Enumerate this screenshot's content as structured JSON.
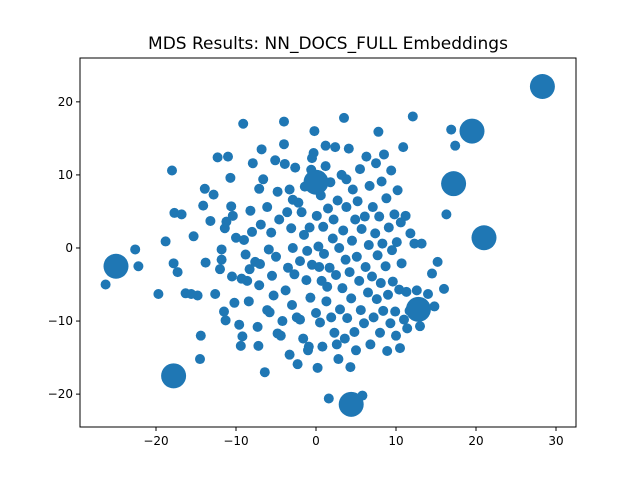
{
  "chart_data": {
    "type": "scatter",
    "title": "MDS Results: NN_DOCS_FULL Embeddings",
    "xlabel": "",
    "ylabel": "",
    "xlim": [
      -29.5,
      32.5
    ],
    "ylim": [
      -24.5,
      26.0
    ],
    "xticks": [
      -20,
      -10,
      0,
      10,
      20,
      30
    ],
    "xtick_labels": [
      "−20",
      "−10",
      "0",
      "10",
      "20",
      "30"
    ],
    "yticks": [
      -20,
      -10,
      0,
      10,
      20
    ],
    "ytick_labels": [
      "−20",
      "−10",
      "0",
      "10",
      "20"
    ],
    "grid": false,
    "color": "#1f77b4",
    "large_points": [
      {
        "x": 28.3,
        "y": 22.1
      },
      {
        "x": 19.5,
        "y": 16.0
      },
      {
        "x": 21.0,
        "y": 1.4
      },
      {
        "x": 12.8,
        "y": -8.4
      },
      {
        "x": -25.0,
        "y": -2.5
      },
      {
        "x": -17.8,
        "y": -17.5
      },
      {
        "x": 4.4,
        "y": -21.4
      },
      {
        "x": 0.0,
        "y": 9.0
      },
      {
        "x": 17.2,
        "y": 8.8
      }
    ],
    "points": [
      [
        -26.3,
        -5.0
      ],
      [
        -22.6,
        -0.2
      ],
      [
        -22.2,
        -2.5
      ],
      [
        -19.7,
        -6.3
      ],
      [
        -18.8,
        0.9
      ],
      [
        -18.0,
        10.6
      ],
      [
        -17.7,
        4.8
      ],
      [
        -17.8,
        -2.1
      ],
      [
        -17.3,
        -3.3
      ],
      [
        -16.8,
        4.6
      ],
      [
        -15.3,
        1.6
      ],
      [
        -14.8,
        -6.5
      ],
      [
        -14.5,
        -15.2
      ],
      [
        -14.4,
        -12.0
      ],
      [
        -14.1,
        5.8
      ],
      [
        -13.9,
        8.1
      ],
      [
        -13.8,
        -2.0
      ],
      [
        -13.2,
        3.7
      ],
      [
        -12.8,
        7.3
      ],
      [
        -12.6,
        -6.3
      ],
      [
        -12.3,
        12.4
      ],
      [
        -11.8,
        -1.6
      ],
      [
        -11.8,
        -0.2
      ],
      [
        -11.5,
        -8.7
      ],
      [
        -11.4,
        2.7
      ],
      [
        -11.3,
        -9.9
      ],
      [
        -11.0,
        12.5
      ],
      [
        -10.7,
        9.6
      ],
      [
        -10.6,
        5.7
      ],
      [
        -10.5,
        -3.9
      ],
      [
        -10.4,
        4.4
      ],
      [
        -10.2,
        -7.5
      ],
      [
        -10.0,
        1.4
      ],
      [
        -9.6,
        -10.5
      ],
      [
        -9.4,
        -13.4
      ],
      [
        -9.2,
        -12.1
      ],
      [
        -9.1,
        17.0
      ],
      [
        -9.0,
        1.1
      ],
      [
        -8.8,
        -0.9
      ],
      [
        -8.6,
        -4.5
      ],
      [
        -8.4,
        -7.3
      ],
      [
        -8.2,
        5.1
      ],
      [
        -8.0,
        2.2
      ],
      [
        -7.9,
        11.6
      ],
      [
        -7.6,
        -1.9
      ],
      [
        -7.3,
        -10.8
      ],
      [
        -7.2,
        -13.4
      ],
      [
        -7.1,
        8.1
      ],
      [
        -7.1,
        -5.1
      ],
      [
        -6.8,
        13.5
      ],
      [
        -6.6,
        9.4
      ],
      [
        -6.4,
        -17.0
      ],
      [
        -6.1,
        5.6
      ],
      [
        -5.9,
        -0.2
      ],
      [
        -5.8,
        -8.8
      ],
      [
        -5.6,
        2.1
      ],
      [
        -5.5,
        -3.8
      ],
      [
        -5.3,
        -6.5
      ],
      [
        -5.1,
        12.0
      ],
      [
        -5.0,
        -1.2
      ],
      [
        -4.8,
        7.7
      ],
      [
        -4.6,
        3.9
      ],
      [
        -4.4,
        -12.0
      ],
      [
        -4.2,
        -10.0
      ],
      [
        -4.0,
        17.3
      ],
      [
        -4.0,
        14.2
      ],
      [
        -3.9,
        11.5
      ],
      [
        -3.8,
        -5.8
      ],
      [
        -3.6,
        4.9
      ],
      [
        -3.5,
        -2.7
      ],
      [
        -3.3,
        8.0
      ],
      [
        -3.3,
        -14.6
      ],
      [
        -3.1,
        2.7
      ],
      [
        -3.0,
        -7.8
      ],
      [
        -2.9,
        0.0
      ],
      [
        -2.7,
        -3.6
      ],
      [
        -2.6,
        11.0
      ],
      [
        -2.4,
        -9.5
      ],
      [
        -2.3,
        -15.9
      ],
      [
        -2.2,
        6.2
      ],
      [
        -2.0,
        -1.8
      ],
      [
        -1.8,
        4.9
      ],
      [
        -1.6,
        -12.4
      ],
      [
        -1.5,
        1.8
      ],
      [
        -1.4,
        8.4
      ],
      [
        -1.2,
        -4.4
      ],
      [
        -1.1,
        -0.4
      ],
      [
        -0.9,
        -13.5
      ],
      [
        -0.8,
        2.8
      ],
      [
        -0.7,
        -6.8
      ],
      [
        -0.6,
        10.7
      ],
      [
        -0.5,
        -2.3
      ],
      [
        -0.3,
        13.0
      ],
      [
        -0.2,
        16.0
      ],
      [
        0.0,
        -8.9
      ],
      [
        0.1,
        4.4
      ],
      [
        0.3,
        0.2
      ],
      [
        0.4,
        -2.6
      ],
      [
        0.5,
        -10.2
      ],
      [
        0.6,
        7.2
      ],
      [
        0.7,
        -4.5
      ],
      [
        0.8,
        -13.5
      ],
      [
        0.9,
        2.9
      ],
      [
        1.0,
        -0.8
      ],
      [
        1.2,
        11.2
      ],
      [
        1.3,
        -7.3
      ],
      [
        1.4,
        -5.3
      ],
      [
        1.5,
        5.4
      ],
      [
        1.6,
        -20.6
      ],
      [
        1.7,
        -2.7
      ],
      [
        1.8,
        9.0
      ],
      [
        1.9,
        -9.5
      ],
      [
        2.1,
        1.3
      ],
      [
        2.2,
        3.9
      ],
      [
        2.3,
        -11.6
      ],
      [
        2.4,
        13.8
      ],
      [
        2.5,
        -3.7
      ],
      [
        2.7,
        6.5
      ],
      [
        2.8,
        -15.2
      ],
      [
        2.9,
        0.0
      ],
      [
        3.0,
        -8.4
      ],
      [
        3.2,
        10.0
      ],
      [
        3.3,
        -5.5
      ],
      [
        3.4,
        2.4
      ],
      [
        3.5,
        17.8
      ],
      [
        3.6,
        -12.4
      ],
      [
        3.7,
        -1.6
      ],
      [
        3.8,
        5.6
      ],
      [
        3.9,
        -9.6
      ],
      [
        4.1,
        13.6
      ],
      [
        4.2,
        -3.3
      ],
      [
        4.3,
        -16.3
      ],
      [
        4.4,
        -6.9
      ],
      [
        4.5,
        1.0
      ],
      [
        4.6,
        8.0
      ],
      [
        4.8,
        -11.5
      ],
      [
        4.9,
        3.9
      ],
      [
        5.0,
        -14.0
      ],
      [
        5.1,
        -1.2
      ],
      [
        5.2,
        6.4
      ],
      [
        5.4,
        -4.5
      ],
      [
        5.5,
        10.8
      ],
      [
        5.6,
        -8.5
      ],
      [
        5.7,
        2.6
      ],
      [
        5.8,
        -20.2
      ],
      [
        6.0,
        -10.3
      ],
      [
        6.1,
        4.3
      ],
      [
        6.2,
        -2.6
      ],
      [
        6.3,
        12.5
      ],
      [
        6.5,
        -6.1
      ],
      [
        6.6,
        0.4
      ],
      [
        6.7,
        8.5
      ],
      [
        6.8,
        -13.2
      ],
      [
        7.0,
        -3.9
      ],
      [
        7.1,
        5.6
      ],
      [
        7.2,
        -9.5
      ],
      [
        7.4,
        2.0
      ],
      [
        7.5,
        11.6
      ],
      [
        7.6,
        -7.0
      ],
      [
        7.7,
        -1.0
      ],
      [
        7.8,
        15.9
      ],
      [
        7.9,
        4.3
      ],
      [
        8.0,
        -11.6
      ],
      [
        8.1,
        -4.8
      ],
      [
        8.2,
        9.1
      ],
      [
        8.3,
        0.6
      ],
      [
        8.4,
        -8.6
      ],
      [
        8.5,
        12.8
      ],
      [
        8.7,
        -2.5
      ],
      [
        8.8,
        6.8
      ],
      [
        8.9,
        -14.1
      ],
      [
        9.0,
        -6.4
      ],
      [
        9.1,
        2.8
      ],
      [
        9.3,
        -10.3
      ],
      [
        9.4,
        10.6
      ],
      [
        9.5,
        -0.3
      ],
      [
        9.6,
        -4.6
      ],
      [
        9.8,
        4.6
      ],
      [
        9.9,
        -8.7
      ],
      [
        10.0,
        -12.0
      ],
      [
        10.1,
        0.8
      ],
      [
        10.2,
        7.9
      ],
      [
        10.4,
        -5.7
      ],
      [
        10.5,
        -13.7
      ],
      [
        10.6,
        3.5
      ],
      [
        10.7,
        -2.1
      ],
      [
        10.9,
        13.8
      ],
      [
        11.0,
        -9.8
      ],
      [
        11.2,
        4.4
      ],
      [
        11.3,
        -6.0
      ],
      [
        11.4,
        -11.0
      ],
      [
        11.7,
        -8.6
      ],
      [
        11.8,
        2.0
      ],
      [
        12.1,
        18.0
      ],
      [
        12.3,
        0.6
      ],
      [
        12.6,
        -5.8
      ],
      [
        13.0,
        -10.7
      ],
      [
        13.2,
        0.6
      ],
      [
        14.0,
        -6.3
      ],
      [
        14.5,
        -3.5
      ],
      [
        14.8,
        -8.0
      ],
      [
        15.2,
        -1.9
      ],
      [
        16.0,
        -5.6
      ],
      [
        16.3,
        4.6
      ],
      [
        16.9,
        16.2
      ],
      [
        17.4,
        14.0
      ],
      [
        -16.3,
        -6.2
      ],
      [
        -15.6,
        -6.3
      ],
      [
        -12.0,
        -2.9
      ],
      [
        -9.3,
        -4.2
      ],
      [
        -7.0,
        -2.2
      ],
      [
        -6.1,
        -8.5
      ],
      [
        -2.0,
        -9.8
      ],
      [
        -1.0,
        -14.0
      ],
      [
        0.2,
        -16.4
      ],
      [
        2.6,
        -13.2
      ],
      [
        -11.2,
        3.6
      ],
      [
        -8.3,
        -2.9
      ],
      [
        -4.8,
        -11.7
      ],
      [
        -6.9,
        3.2
      ],
      [
        -2.9,
        6.6
      ],
      [
        -0.5,
        12.3
      ],
      [
        1.2,
        14.0
      ],
      [
        3.8,
        9.4
      ]
    ]
  }
}
